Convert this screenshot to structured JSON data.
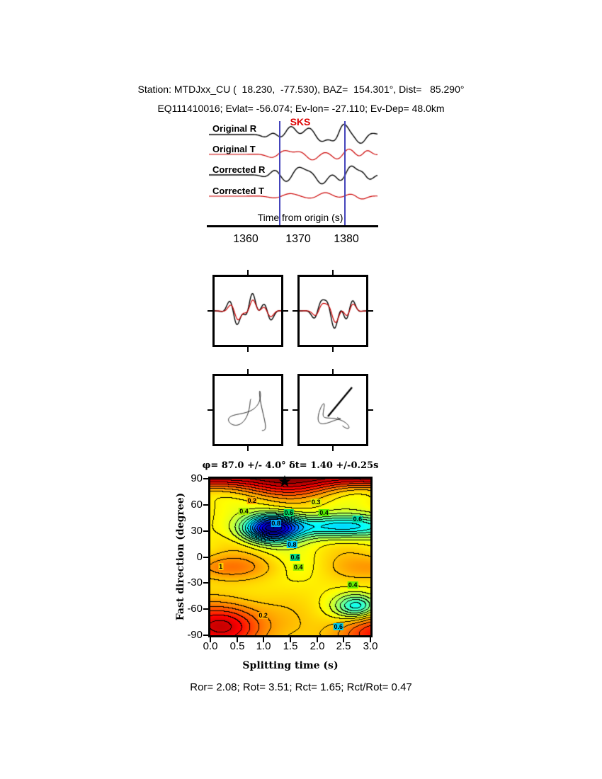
{
  "header": {
    "line1": "Station: MTDJxx_CU (  18.230,  -77.530), BAZ=  154.301°, Dist=   85.290°",
    "line2": "EQ111410016; Evlat= -56.074; Ev-lon= -27.110; Ev-Dep= 48.0km"
  },
  "footer": "Ror= 2.08; Rot= 3.51; Rct= 1.65; Rct/Rot= 0.47",
  "chart_data": [
    {
      "type": "line",
      "id": "waveform-panel",
      "phase": "SKS",
      "xlabel": "Time from origin (s)",
      "xticks": [
        "1360",
        "1370",
        "1380"
      ],
      "window_times_s": [
        1367,
        1381
      ],
      "window_color": "#4444bb",
      "traces": [
        {
          "name": "Original R",
          "color": "#000000",
          "shape": [
            [
              0.36,
              0.05,
              6,
              5,
              0
            ],
            [
              0.48,
              0.07,
              12,
              5.5,
              1.2
            ],
            [
              0.63,
              0.08,
              -14,
              4.5,
              0
            ],
            [
              0.78,
              0.06,
              16,
              6,
              0.5
            ],
            [
              0.9,
              0.06,
              -12,
              5,
              1.5
            ]
          ]
        },
        {
          "name": "Original T",
          "color": "#cc0000",
          "shape": [
            [
              0.42,
              0.08,
              7,
              4.5,
              0.3
            ],
            [
              0.6,
              0.09,
              -8,
              5,
              1.0
            ],
            [
              0.8,
              0.08,
              9,
              5.5,
              0.2
            ],
            [
              0.93,
              0.05,
              6,
              6,
              1
            ]
          ]
        },
        {
          "name": "Corrected R",
          "color": "#000000",
          "shape": [
            [
              0.38,
              0.06,
              7,
              5,
              0.8
            ],
            [
              0.5,
              0.08,
              13,
              5,
              0.2
            ],
            [
              0.66,
              0.08,
              -13,
              5,
              1.1
            ],
            [
              0.82,
              0.07,
              15,
              5.5,
              0.4
            ],
            [
              0.93,
              0.05,
              -9,
              6,
              0
            ]
          ]
        },
        {
          "name": "Corrected T",
          "color": "#cc0000",
          "shape": [
            [
              0.45,
              0.1,
              4,
              4,
              0.5
            ],
            [
              0.68,
              0.1,
              5,
              4.5,
              1.2
            ],
            [
              0.88,
              0.07,
              -5,
              5,
              0.3
            ]
          ]
        }
      ]
    },
    {
      "type": "scatter",
      "id": "particle-motion",
      "compare_panels": [
        {
          "black": [
            [
              0.3,
              0.12,
              -22,
              3.5,
              0.5
            ],
            [
              0.55,
              0.1,
              26,
              3.2,
              1.0
            ],
            [
              0.8,
              0.1,
              -18,
              3.0,
              0.2
            ]
          ],
          "red": [
            [
              0.32,
              0.12,
              -14,
              3.5,
              0.6
            ],
            [
              0.56,
              0.1,
              16,
              3.2,
              1.1
            ],
            [
              0.8,
              0.1,
              -11,
              3,
              0.3
            ]
          ]
        },
        {
          "black": [
            [
              0.28,
              0.1,
              18,
              3,
              0.2
            ],
            [
              0.5,
              0.12,
              -26,
              3.2,
              0.9
            ],
            [
              0.75,
              0.1,
              20,
              3.4,
              0.1
            ]
          ],
          "red": [
            [
              0.3,
              0.1,
              12,
              3,
              0.3
            ],
            [
              0.52,
              0.12,
              -17,
              3.2,
              1.0
            ],
            [
              0.76,
              0.1,
              13,
              3.4,
              0.2
            ]
          ]
        }
      ],
      "hodograms": [
        {
          "cx": 47,
          "cy": 50,
          "decay": 0.6,
          "x": [
            [
              30,
              1.05,
              0.3
            ],
            [
              11,
              2.4,
              1.6
            ]
          ],
          "y": [
            [
              27,
              1.35,
              2.1
            ],
            [
              9,
              2.8,
              0.4
            ]
          ]
        },
        {
          "cx": 42,
          "cy": 56,
          "decay": 0.5,
          "x": [
            [
              20,
              1.1,
              1.0
            ],
            [
              9,
              2.5,
              0.2
            ]
          ],
          "y": [
            [
              16,
              1.45,
              0.5
            ],
            [
              7,
              3.0,
              1.3
            ]
          ],
          "line": [
            40,
            57,
            74,
            16
          ]
        }
      ]
    },
    {
      "type": "heatmap",
      "id": "splitting-misfit-contour",
      "title": "φ= 87.0 +/- 4.0° δt= 1.40 +/-0.25s",
      "xlabel": "Splitting time (s)",
      "ylabel": "Fast direction (degree)",
      "xlim": [
        0.0,
        3.0
      ],
      "ylim": [
        -90,
        90
      ],
      "xticks": [
        "0.0",
        "0.5",
        "1.0",
        "1.5",
        "2.0",
        "2.5",
        "3.0"
      ],
      "yticks": [
        "90",
        "60",
        "30",
        "0",
        "-30",
        "-60",
        "-90"
      ],
      "best_fit": {
        "fast_direction_deg": 87.0,
        "fast_direction_err_deg": 4.0,
        "splitting_time_s": 1.4,
        "splitting_time_err_s": 0.25
      },
      "contour_labels": [
        {
          "text": "0.2",
          "fx": 0.26,
          "fy": 0.14,
          "bg": "#ffaa00"
        },
        {
          "text": "0.3",
          "fx": 0.66,
          "fy": 0.15,
          "bg": "#ddee00"
        },
        {
          "text": "0.4",
          "fx": 0.21,
          "fy": 0.21,
          "bg": "#aaee00"
        },
        {
          "text": "0.6",
          "fx": 0.49,
          "fy": 0.215,
          "bg": "#00dd66"
        },
        {
          "text": "0.4",
          "fx": 0.71,
          "fy": 0.215,
          "bg": "#55ee00"
        },
        {
          "text": "0.6",
          "fx": 0.92,
          "fy": 0.26,
          "bg": "#00ddaa"
        },
        {
          "text": "0.8",
          "fx": 0.41,
          "fy": 0.285,
          "bg": "#00aaff"
        },
        {
          "text": "0.8",
          "fx": 0.51,
          "fy": 0.42,
          "bg": "#00ccff"
        },
        {
          "text": "0.6",
          "fx": 0.53,
          "fy": 0.5,
          "bg": "#00dd88"
        },
        {
          "text": "0.4",
          "fx": 0.55,
          "fy": 0.565,
          "bg": "#99ee00"
        },
        {
          "text": "1",
          "fx": 0.065,
          "fy": 0.56,
          "bg": "#ffcc00"
        },
        {
          "text": "0.4",
          "fx": 0.89,
          "fy": 0.68,
          "bg": "#66ee00"
        },
        {
          "text": "0.2",
          "fx": 0.33,
          "fy": 0.875,
          "bg": "#ffaa00"
        },
        {
          "text": "0.6",
          "fx": 0.8,
          "fy": 0.945,
          "bg": "#00ccee"
        }
      ]
    }
  ]
}
